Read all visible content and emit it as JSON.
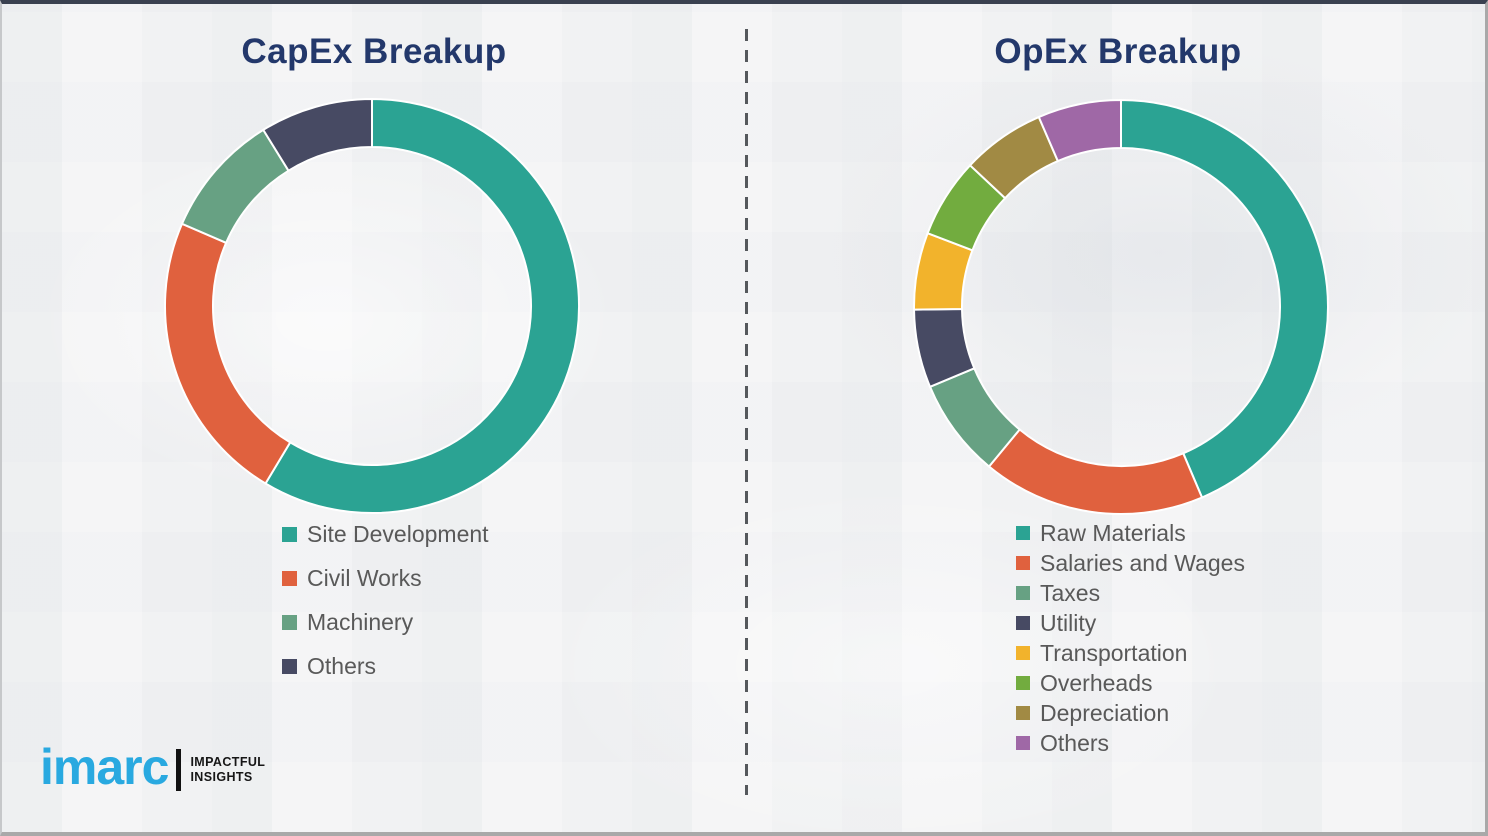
{
  "titles": {
    "capex": "CapEx Breakup",
    "opex": "OpEx Breakup"
  },
  "chart_data": [
    {
      "type": "pie",
      "subtype": "donut",
      "title": "CapEx Breakup",
      "categories": [
        "Site Development",
        "Civil Works",
        "Machinery",
        "Others"
      ],
      "values": [
        58.6,
        22.9,
        9.7,
        8.8
      ],
      "units": "percent",
      "colors": [
        "#2BA393",
        "#E0613E",
        "#67A183",
        "#474A63"
      ],
      "start_angle_deg": 0,
      "direction": "clockwise",
      "legend_position": "below-left"
    },
    {
      "type": "pie",
      "subtype": "donut",
      "title": "OpEx Breakup",
      "categories": [
        "Raw Materials",
        "Salaries and Wages",
        "Taxes",
        "Utility",
        "Transportation",
        "Overheads",
        "Depreciation",
        "Others"
      ],
      "values": [
        43.6,
        17.4,
        7.7,
        6.1,
        6.0,
        6.2,
        6.5,
        6.5
      ],
      "units": "percent",
      "colors": [
        "#2BA393",
        "#E0613E",
        "#67A183",
        "#474A63",
        "#F2B32C",
        "#72AC3F",
        "#A18A44",
        "#9F68A6"
      ],
      "start_angle_deg": 0,
      "direction": "clockwise",
      "legend_position": "below-left"
    }
  ],
  "logo": {
    "brand": "imarc",
    "tagline_line1": "IMPACTFUL",
    "tagline_line2": "INSIGHTS"
  },
  "styles": {
    "title_color": "#23386B",
    "legend_text_color": "#595959",
    "brand_blue": "#29A9E0",
    "background": "#F1F2F3",
    "segment_gap_color": "#FFFFFF"
  }
}
